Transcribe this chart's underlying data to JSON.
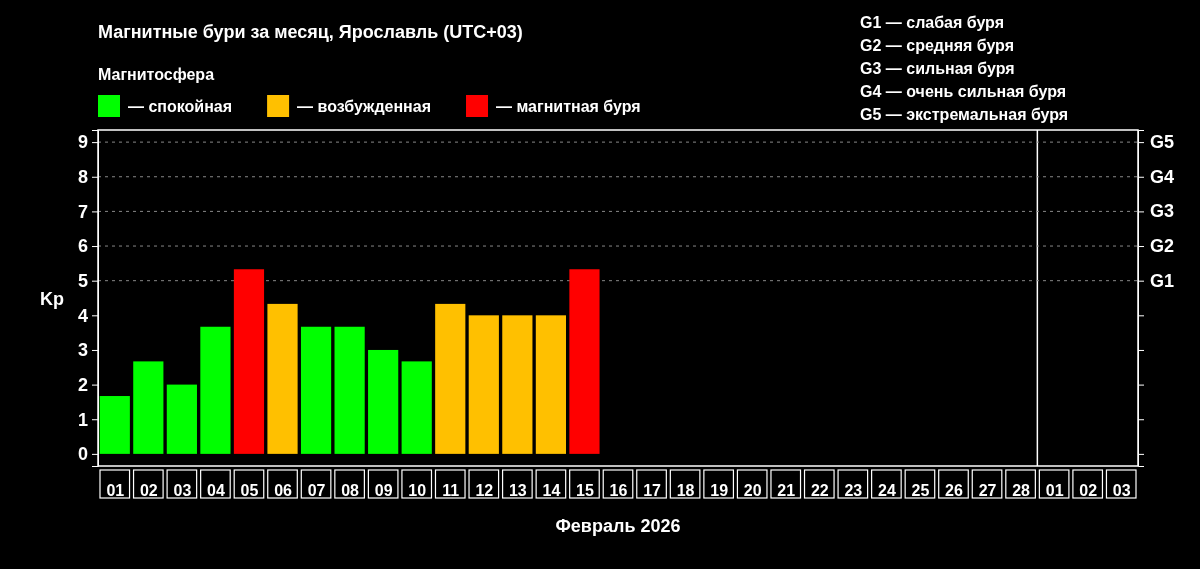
{
  "chart_data": {
    "type": "bar",
    "title": "Магнитные бури за месяц, Ярославль (UTC+03)",
    "legend_title": "Магнитосфера",
    "xlabel": "Февраль 2026",
    "ylabel": "Kp",
    "x": [
      "2026-02-01",
      "2026-02-02",
      "2026-02-03",
      "2026-02-04",
      "2026-02-05",
      "2026-02-06",
      "2026-02-07",
      "2026-02-08",
      "2026-02-09",
      "2026-02-10",
      "2026-02-11",
      "2026-02-12",
      "2026-02-13",
      "2026-02-14",
      "2026-02-15"
    ],
    "xlim": [
      "2026-01-31T12:00",
      "2026-03-03T12:00"
    ],
    "xticks": [
      {
        "value": "2026-02-01",
        "label": "01"
      },
      {
        "value": "2026-02-02",
        "label": "02"
      },
      {
        "value": "2026-02-03",
        "label": "03"
      },
      {
        "value": "2026-02-04",
        "label": "04"
      },
      {
        "value": "2026-02-05",
        "label": "05"
      },
      {
        "value": "2026-02-06",
        "label": "06"
      },
      {
        "value": "2026-02-07",
        "label": "07"
      },
      {
        "value": "2026-02-08",
        "label": "08"
      },
      {
        "value": "2026-02-09",
        "label": "09"
      },
      {
        "value": "2026-02-10",
        "label": "10"
      },
      {
        "value": "2026-02-11",
        "label": "11"
      },
      {
        "value": "2026-02-12",
        "label": "12"
      },
      {
        "value": "2026-02-13",
        "label": "13"
      },
      {
        "value": "2026-02-14",
        "label": "14"
      },
      {
        "value": "2026-02-15",
        "label": "15"
      },
      {
        "value": "2026-02-16",
        "label": "16"
      },
      {
        "value": "2026-02-17",
        "label": "17"
      },
      {
        "value": "2026-02-18",
        "label": "18"
      },
      {
        "value": "2026-02-19",
        "label": "19"
      },
      {
        "value": "2026-02-20",
        "label": "20"
      },
      {
        "value": "2026-02-21",
        "label": "21"
      },
      {
        "value": "2026-02-22",
        "label": "22"
      },
      {
        "value": "2026-02-23",
        "label": "23"
      },
      {
        "value": "2026-02-24",
        "label": "24"
      },
      {
        "value": "2026-02-25",
        "label": "25"
      },
      {
        "value": "2026-02-26",
        "label": "26"
      },
      {
        "value": "2026-02-27",
        "label": "27"
      },
      {
        "value": "2026-02-28",
        "label": "28"
      },
      {
        "value": "2026-03-01",
        "label": "01"
      },
      {
        "value": "2026-03-02",
        "label": "02"
      },
      {
        "value": "2026-03-03",
        "label": "03"
      }
    ],
    "legend": "top left",
    "grid": false,
    "series": [
      {
        "name": "— спокойная",
        "color": "#00ff00",
        "values": [
          1.67,
          2.67,
          2,
          3.67,
          null,
          null,
          3.67,
          3.67,
          3,
          2.67,
          null,
          null,
          null,
          null,
          null
        ]
      },
      {
        "name": "— возбужденная",
        "color": "#ffc000",
        "values": [
          null,
          null,
          null,
          null,
          null,
          4.33,
          null,
          null,
          null,
          null,
          4.33,
          4,
          4,
          4,
          null
        ]
      },
      {
        "name": "— магнитная буря",
        "color": "#ff0000",
        "values": [
          null,
          null,
          null,
          null,
          5.33,
          null,
          null,
          null,
          null,
          null,
          null,
          null,
          null,
          null,
          5.33
        ]
      }
    ],
    "ylim": [
      -0.35,
      9.35
    ],
    "yticks": [
      0,
      1,
      2,
      3,
      4,
      5,
      6,
      7,
      8,
      9
    ],
    "ref_lines": [
      {
        "axis": "x",
        "value": "2026-02-28T12:00",
        "label": null,
        "color": "#ffffff",
        "line_style": "solid"
      },
      {
        "axis": "y",
        "value": 5,
        "label": "G1",
        "color": "#888888",
        "line_style": "dashed"
      },
      {
        "axis": "y",
        "value": 6,
        "label": "G2",
        "color": "#888888",
        "line_style": "dashed"
      },
      {
        "axis": "y",
        "value": 7,
        "label": "G3",
        "color": "#888888",
        "line_style": "dashed"
      },
      {
        "axis": "y",
        "value": 8,
        "label": "G4",
        "color": "#888888",
        "line_style": "dashed"
      },
      {
        "axis": "y",
        "value": 9,
        "label": "G5",
        "color": "#888888",
        "line_style": "dashed"
      }
    ],
    "annotations": [
      "G1 — слабая буря",
      "G2 — средняя буря",
      "G3 — сильная буря",
      "G4 — очень сильная буря",
      "G5 — экстремальная буря"
    ]
  }
}
